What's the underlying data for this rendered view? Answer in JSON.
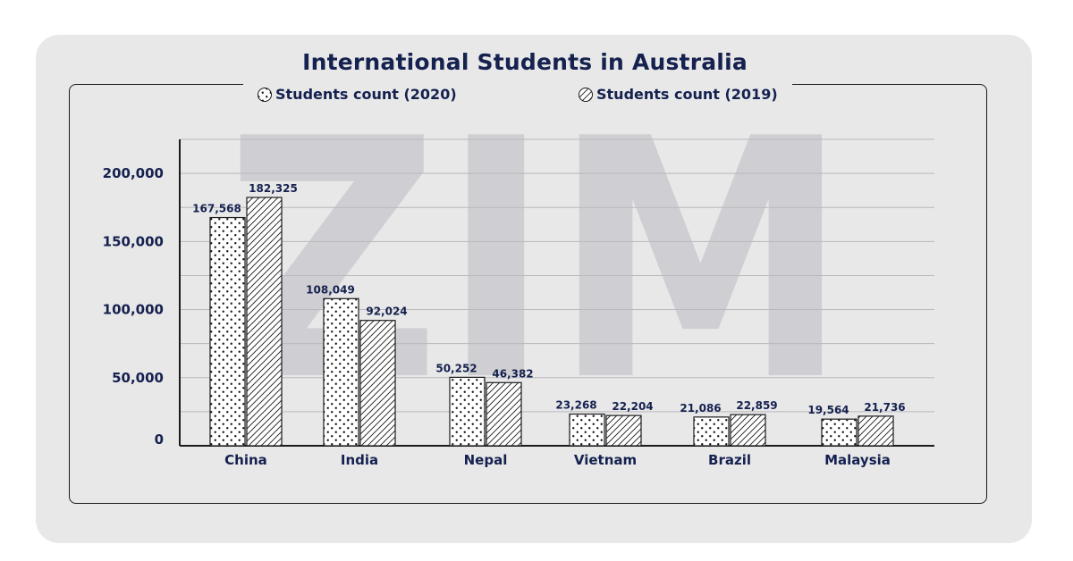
{
  "chart_data": {
    "type": "bar",
    "title": "International Students in Australia",
    "categories": [
      "China",
      "India",
      "Nepal",
      "Vietnam",
      "Brazil",
      "Malaysia"
    ],
    "series": [
      {
        "name": "Students count (2020)",
        "values": [
          167568,
          108049,
          50252,
          23268,
          21086,
          19564
        ],
        "labels": [
          "167,568",
          "108,049",
          "50,252",
          "23,268",
          "21,086",
          "19,564"
        ],
        "pattern": "dots"
      },
      {
        "name": "Students count (2019)",
        "values": [
          182325,
          92024,
          46382,
          22204,
          22859,
          21736
        ],
        "labels": [
          "182,325",
          "92,024",
          "46,382",
          "22,204",
          "22,859",
          "21,736"
        ],
        "pattern": "hatch"
      }
    ],
    "yticks": [
      0,
      50000,
      100000,
      150000,
      200000
    ],
    "ytick_labels": [
      "0",
      "50,000",
      "100,000",
      "150,000",
      "200,000"
    ],
    "ylim": [
      0,
      225000
    ],
    "grid": true,
    "legend_position": "top-center",
    "watermark": "ZIM",
    "colors": {
      "text": "#15214e",
      "background": "#e8e8e9",
      "grid": "#b9b9bd",
      "bar_stroke": "#1b1b1b",
      "bar_fill": "#ffffff"
    }
  }
}
